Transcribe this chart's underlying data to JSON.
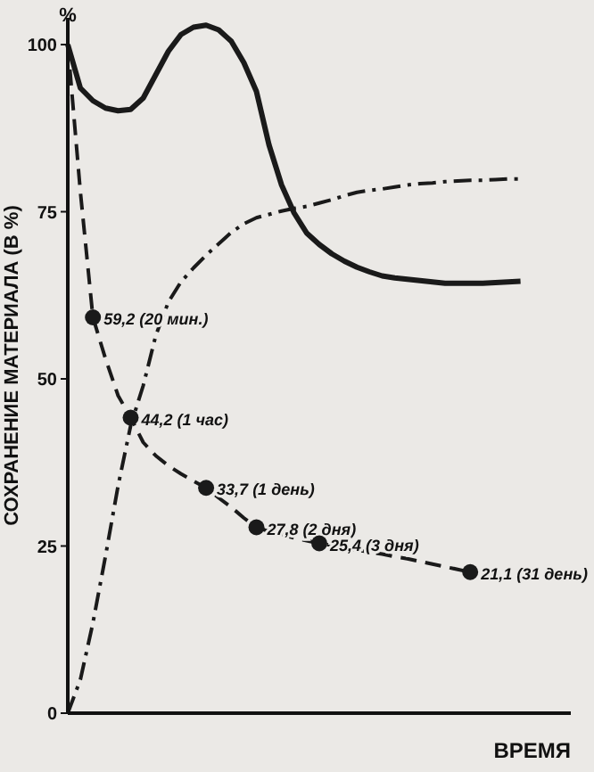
{
  "chart_data": {
    "type": "line",
    "ylabel": "СОХРАНЕНИЕ МАТЕРИАЛА (В %)",
    "xlabel": "ВРЕМЯ",
    "annotations": [
      "%"
    ],
    "categories": [
      null,
      null,
      null,
      null,
      null,
      null,
      null,
      null,
      null,
      null,
      null,
      null,
      null,
      null,
      null,
      null,
      null,
      null,
      null,
      null,
      null,
      null,
      null,
      null,
      null,
      null,
      null,
      null,
      null,
      null,
      null,
      null,
      null,
      null,
      null,
      null,
      null,
      null,
      null,
      null,
      null
    ],
    "ylim": [
      0,
      104
    ],
    "yticks": [
      0,
      25,
      50,
      75,
      100
    ],
    "grid": false,
    "legend": false,
    "marker": "none",
    "series": [
      {
        "color": "#1a1a1a",
        "line_style": "solid",
        "values": [
          100,
          93.5,
          91.6,
          90.5,
          90.1,
          90.3,
          92,
          95.5,
          99,
          101.5,
          102.6,
          102.9,
          102.2,
          100.5,
          97.3,
          93,
          85,
          79,
          74.8,
          71.8,
          70.1,
          68.7,
          67.6,
          66.7,
          66,
          65.4,
          65.1,
          64.9,
          64.7,
          64.5,
          64.3,
          64.3,
          64.3,
          64.3,
          64.4,
          64.5,
          64.6,
          null,
          null,
          null,
          null
        ]
      },
      {
        "color": "#1a1a1a",
        "line_style": "dashed",
        "values": [
          100,
          78,
          59.2,
          53,
          47.5,
          44.2,
          40.5,
          38.5,
          37,
          35.8,
          34.7,
          33.7,
          32.2,
          30.8,
          29.2,
          27.8,
          27.2,
          26.7,
          26.2,
          25.8,
          25.4,
          25.1,
          24.7,
          24.4,
          24.1,
          23.8,
          23.4,
          23.1,
          22.7,
          22.3,
          21.9,
          21.5,
          21.1,
          null,
          null,
          null,
          null,
          null,
          null,
          null,
          null
        ],
        "value_labels": [
          null,
          null,
          "59,2 (20 мин.)",
          null,
          null,
          "44,2 (1 час)",
          null,
          null,
          null,
          null,
          null,
          "33,7 (1 день)",
          null,
          null,
          null,
          "27,8 (2 дня)",
          null,
          null,
          null,
          null,
          "25,4 (3 дня)",
          null,
          null,
          null,
          null,
          null,
          null,
          null,
          null,
          null,
          null,
          null,
          "21,1 (31 день)",
          null,
          null,
          null,
          null,
          null,
          null,
          null,
          null
        ]
      },
      {
        "color": "#1a1a1a",
        "line_style": "dashdot",
        "values": [
          0,
          5,
          13.5,
          23.5,
          34,
          43,
          49,
          56.5,
          61.5,
          64.5,
          66.6,
          68.5,
          70.2,
          71.9,
          73.2,
          74.1,
          74.6,
          75.1,
          75.5,
          75.8,
          76.3,
          76.8,
          77.4,
          77.9,
          78.2,
          78.4,
          78.7,
          79,
          79.2,
          79.3,
          79.5,
          79.6,
          79.7,
          79.7,
          79.8,
          79.9,
          79.9,
          null,
          null,
          null,
          null
        ]
      }
    ]
  }
}
